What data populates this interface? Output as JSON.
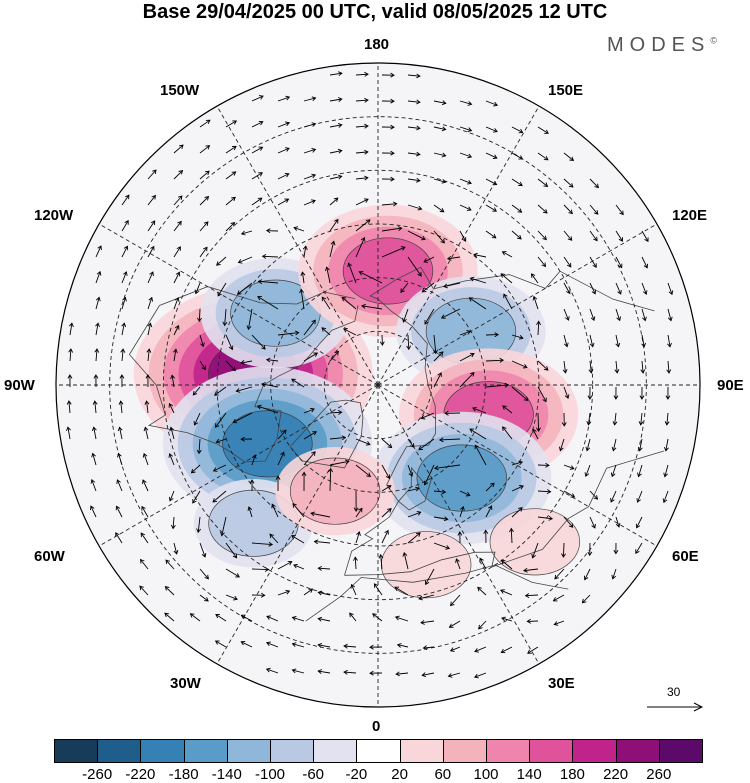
{
  "title": "Base 29/04/2025 00 UTC, valid 08/05/2025 12 UTC",
  "brand": "MODES",
  "brand_mark": "©",
  "longitude_labels": {
    "lon_180": "180",
    "lon_150w": "150W",
    "lon_150e": "150E",
    "lon_120w": "120W",
    "lon_120e": "120E",
    "lon_90w": "90W",
    "lon_90e": "90E",
    "lon_60w": "60W",
    "lon_60e": "60E",
    "lon_30w": "30W",
    "lon_30e": "30E",
    "lon_0": "0"
  },
  "reference_vector": {
    "label": "30",
    "value": 30
  },
  "colorbar": {
    "ticks": [
      "-260",
      "-220",
      "-180",
      "-140",
      "-100",
      "-60",
      "-20",
      "20",
      "60",
      "100",
      "140",
      "180",
      "220",
      "260"
    ],
    "colors": [
      "#173c5a",
      "#1f5e8a",
      "#3580b5",
      "#5a9cc8",
      "#8fb7d9",
      "#b9c9e3",
      "#e2e2f0",
      "#ffffff",
      "#f9d6d9",
      "#f4b2bd",
      "#ef85ac",
      "#e0529c",
      "#c0238a",
      "#8e0f78",
      "#5c0a6a"
    ]
  },
  "anomaly_centers": [
    {
      "name": "north-america-high",
      "sign": "positive",
      "lon": -95,
      "lat": 55,
      "value": 250
    },
    {
      "name": "pacific-low",
      "sign": "negative",
      "lon": -125,
      "lat": 55,
      "value": -120
    },
    {
      "name": "bering-high",
      "sign": "positive",
      "lon": 175,
      "lat": 58,
      "value": 160
    },
    {
      "name": "east-siberia-low",
      "sign": "negative",
      "lon": 120,
      "lat": 60,
      "value": -120
    },
    {
      "name": "central-siberia-high",
      "sign": "positive",
      "lon": 75,
      "lat": 58,
      "value": 190
    },
    {
      "name": "eastern-europe-low",
      "sign": "negative",
      "lon": 42,
      "lat": 55,
      "value": -190
    },
    {
      "name": "labrador-low",
      "sign": "negative",
      "lon": -62,
      "lat": 55,
      "value": -230
    },
    {
      "name": "atlantic-low",
      "sign": "negative",
      "lon": -42,
      "lat": 38,
      "value": -110
    },
    {
      "name": "north-atlantic-high",
      "sign": "positive",
      "lon": -22,
      "lat": 58,
      "value": 110
    },
    {
      "name": "mediterranean-high",
      "sign": "positive",
      "lon": 15,
      "lat": 38,
      "value": 70
    },
    {
      "name": "arabia-high",
      "sign": "positive",
      "lon": 45,
      "lat": 28,
      "value": 50
    }
  ]
}
